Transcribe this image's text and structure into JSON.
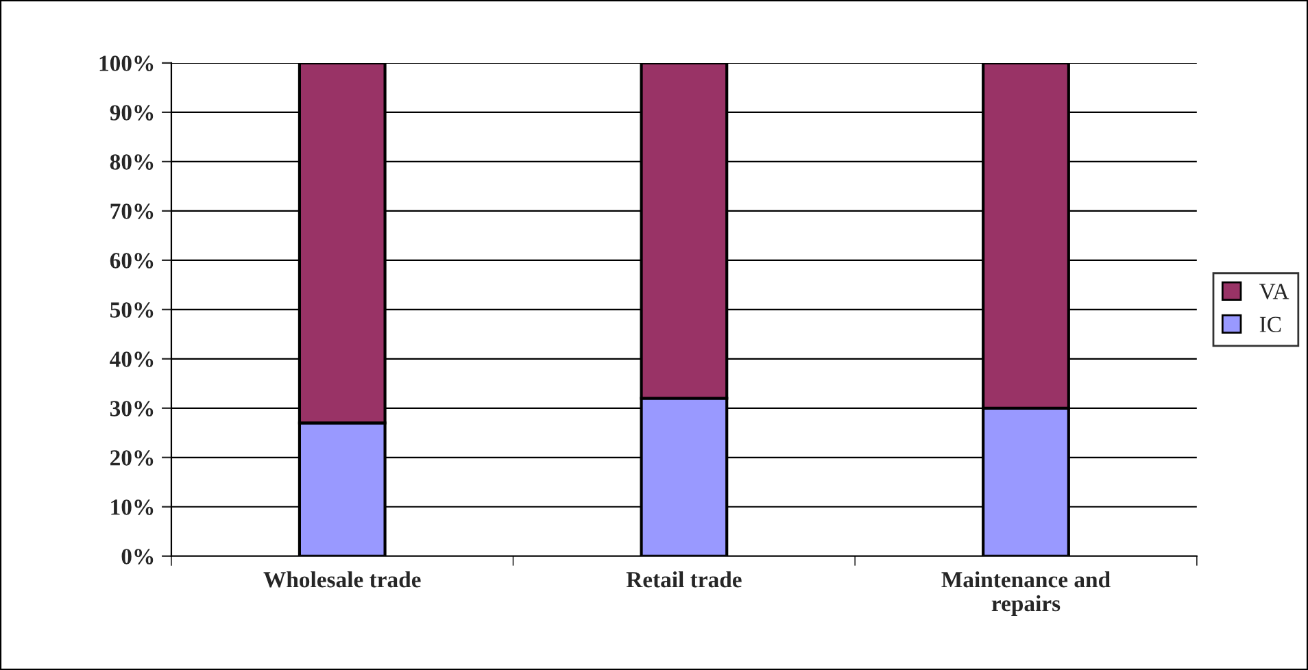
{
  "chart_data": {
    "type": "bar",
    "stacked": true,
    "categories": [
      "Wholesale trade",
      "Retail trade",
      "Maintenance and repairs"
    ],
    "series": [
      {
        "name": "IC",
        "color": "#9999ff",
        "values": [
          27,
          32,
          30
        ]
      },
      {
        "name": "VA",
        "color": "#993366",
        "values": [
          73,
          68,
          70
        ]
      }
    ],
    "ylim": [
      0,
      100
    ],
    "yticks": [
      {
        "value": 0,
        "label": "0%"
      },
      {
        "value": 10,
        "label": "10%"
      },
      {
        "value": 20,
        "label": "20%"
      },
      {
        "value": 30,
        "label": "30%"
      },
      {
        "value": 40,
        "label": "40%"
      },
      {
        "value": 50,
        "label": "50%"
      },
      {
        "value": 60,
        "label": "60%"
      },
      {
        "value": 70,
        "label": "70%"
      },
      {
        "value": 80,
        "label": "80%"
      },
      {
        "value": 90,
        "label": "90%"
      },
      {
        "value": 100,
        "label": "100%"
      }
    ],
    "grid": "y",
    "legend": "right"
  }
}
